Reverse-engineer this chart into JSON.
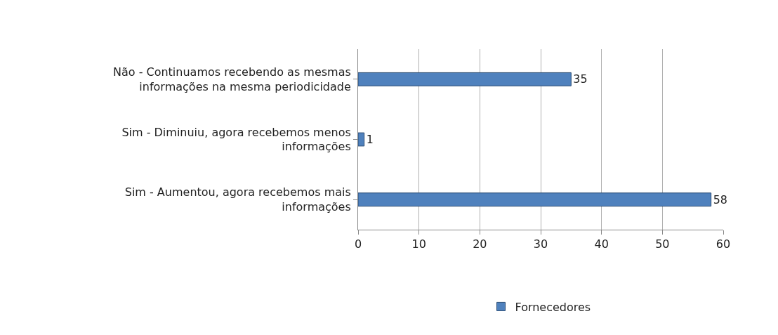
{
  "chart_data": {
    "type": "bar",
    "orientation": "horizontal",
    "categories": [
      "Não - Continuamos recebendo as mesmas informações na mesma periodicidade",
      "Sim - Diminuiu, agora recebemos menos informações",
      "Sim - Aumentou, agora recebemos mais informações"
    ],
    "series": [
      {
        "name": "Fornecedores",
        "color": "#4f81bd",
        "values": [
          35,
          1,
          58
        ]
      }
    ],
    "xlim": [
      0,
      60
    ],
    "xticks": [
      0,
      10,
      20,
      30,
      40,
      50,
      60
    ],
    "grid": "x",
    "legend": "bottom",
    "data_labels": true
  }
}
